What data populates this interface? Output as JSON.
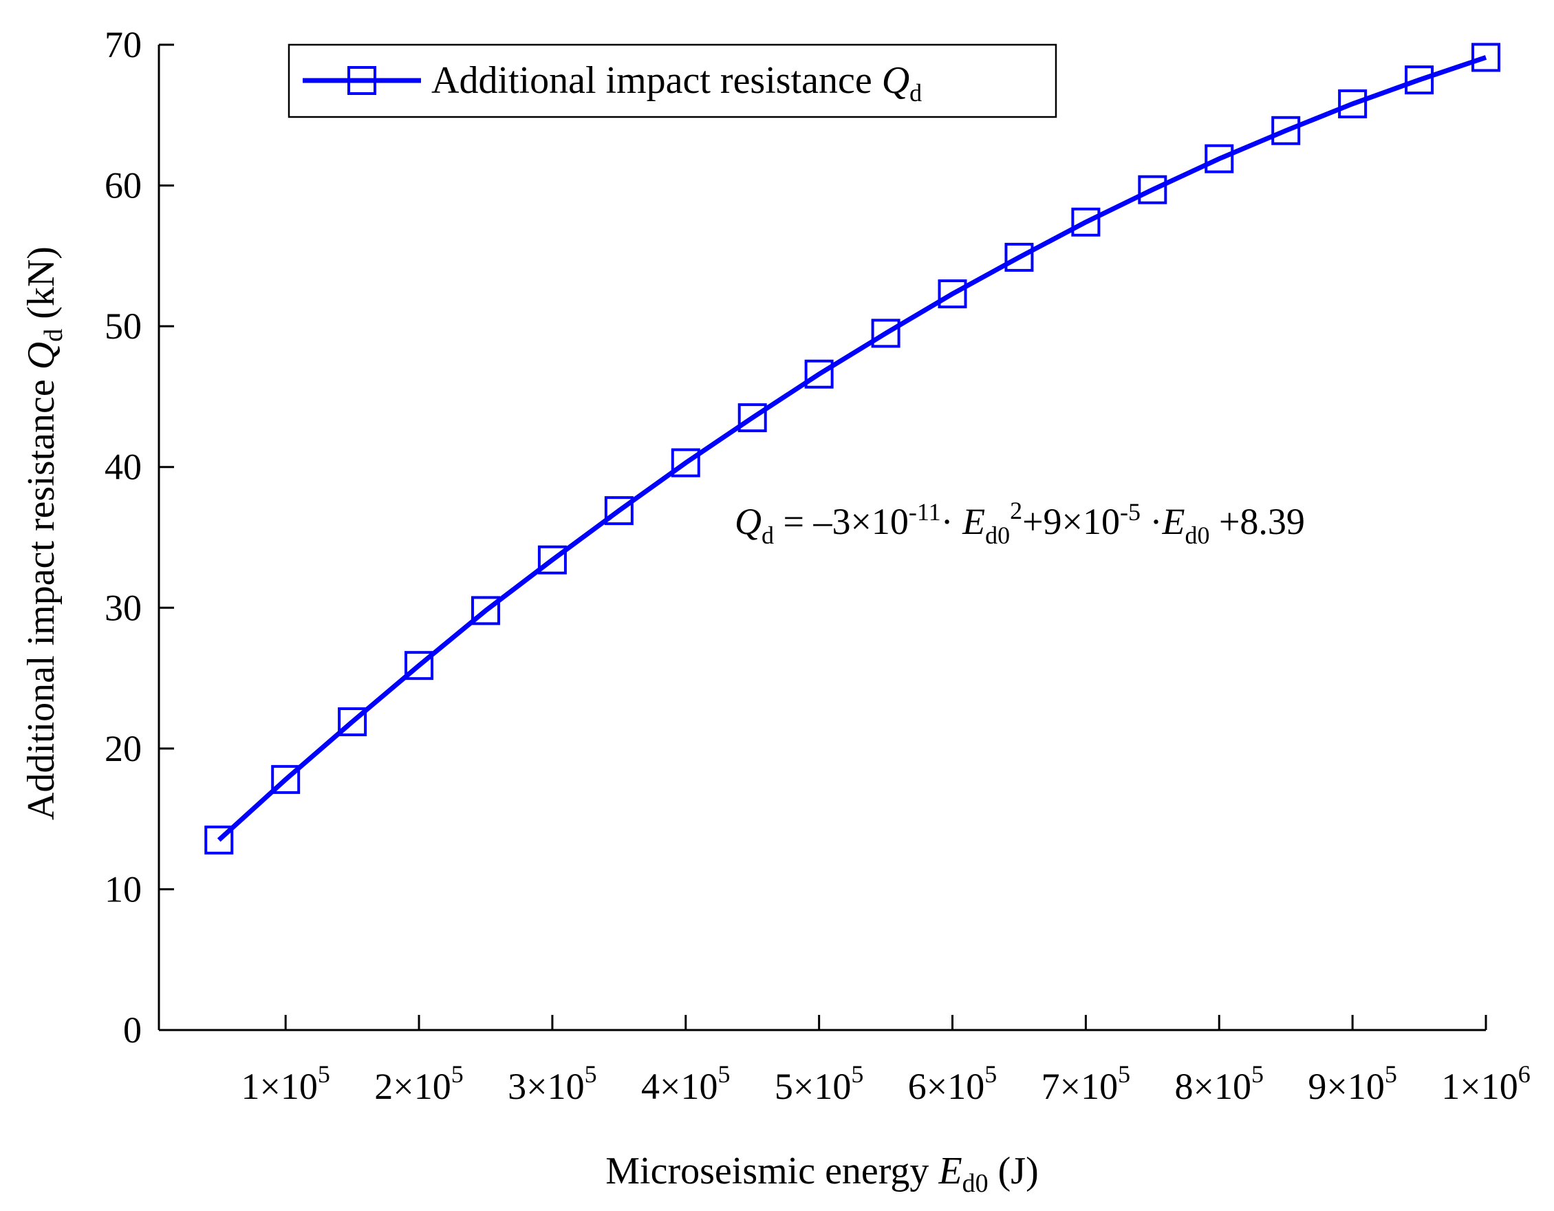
{
  "chart_data": {
    "type": "line",
    "title": "",
    "xlabel": "Microseismic energy",
    "xlabel_symbol": "E",
    "xlabel_subscript": "d0",
    "xlabel_unit": "(J)",
    "ylabel": "Additional impact resistance",
    "ylabel_symbol": "Q",
    "ylabel_subscript": "d",
    "ylabel_unit": "(kN)",
    "xlim": [
      5000,
      1000000
    ],
    "ylim": [
      0,
      70
    ],
    "y_ticks": [
      {
        "value": 0,
        "label": "0"
      },
      {
        "value": 10,
        "label": "10"
      },
      {
        "value": 20,
        "label": "20"
      },
      {
        "value": 30,
        "label": "30"
      },
      {
        "value": 40,
        "label": "40"
      },
      {
        "value": 50,
        "label": "50"
      },
      {
        "value": 60,
        "label": "60"
      },
      {
        "value": 70,
        "label": "70"
      }
    ],
    "x_ticks": [
      {
        "value": 100000,
        "mantissa": "1×10",
        "exp": "5"
      },
      {
        "value": 200000,
        "mantissa": "2×10",
        "exp": "5"
      },
      {
        "value": 300000,
        "mantissa": "3×10",
        "exp": "5"
      },
      {
        "value": 400000,
        "mantissa": "4×10",
        "exp": "5"
      },
      {
        "value": 500000,
        "mantissa": "5×10",
        "exp": "5"
      },
      {
        "value": 600000,
        "mantissa": "6×10",
        "exp": "5"
      },
      {
        "value": 700000,
        "mantissa": "7×10",
        "exp": "5"
      },
      {
        "value": 800000,
        "mantissa": "8×10",
        "exp": "5"
      },
      {
        "value": 900000,
        "mantissa": "9×10",
        "exp": "5"
      },
      {
        "value": 1000000,
        "mantissa": "1×10",
        "exp": "6"
      }
    ],
    "series": [
      {
        "name": "Additional impact resistance",
        "name_symbol": "Q",
        "name_subscript": "d",
        "color": "#0000ff",
        "marker": "open-square",
        "points": [
          {
            "x": 50000,
            "y": 13.5
          },
          {
            "x": 100000,
            "y": 17.8
          },
          {
            "x": 150000,
            "y": 21.9
          },
          {
            "x": 200000,
            "y": 25.9
          },
          {
            "x": 250000,
            "y": 29.8
          },
          {
            "x": 300000,
            "y": 33.4
          },
          {
            "x": 350000,
            "y": 36.9
          },
          {
            "x": 400000,
            "y": 40.3
          },
          {
            "x": 450000,
            "y": 43.5
          },
          {
            "x": 500000,
            "y": 46.6
          },
          {
            "x": 550000,
            "y": 49.5
          },
          {
            "x": 600000,
            "y": 52.3
          },
          {
            "x": 650000,
            "y": 54.9
          },
          {
            "x": 700000,
            "y": 57.4
          },
          {
            "x": 750000,
            "y": 59.7
          },
          {
            "x": 800000,
            "y": 61.9
          },
          {
            "x": 850000,
            "y": 63.9
          },
          {
            "x": 900000,
            "y": 65.8
          },
          {
            "x": 950000,
            "y": 67.5
          },
          {
            "x": 1000000,
            "y": 69.1
          }
        ]
      }
    ],
    "legend_position": "top-left",
    "grid": false,
    "annotation": {
      "q": "Q",
      "q_sub": "d",
      "eq": " = –3×10",
      "exp1": "-11",
      "dot1": "· ",
      "e1": "E",
      "e1_sub": "d0",
      "e1_sup": "2",
      "plus": "+9×10",
      "exp2": "-5",
      "dot2": " ·",
      "e2": "E",
      "e2_sub": "d0",
      "const": " +8.39"
    }
  }
}
